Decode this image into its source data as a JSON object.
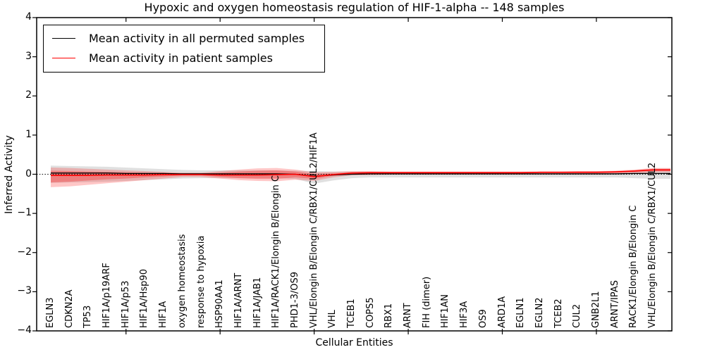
{
  "legend": {
    "items": [
      {
        "label": "Mean activity in all permuted samples",
        "color": "#000000"
      },
      {
        "label": "Mean activity in patient samples",
        "color": "#ff0000"
      }
    ]
  },
  "chart_data": {
    "type": "line",
    "title": "Hypoxic and oxygen homeostasis regulation of HIF-1-alpha -- 148 samples",
    "xlabel": "Cellular Entities",
    "ylabel": "Inferred Activity",
    "ylim": [
      -4,
      4
    ],
    "ytick_labels": [
      "4",
      "3",
      "2",
      "1",
      "0",
      "−1",
      "−2",
      "−3",
      "−4"
    ],
    "grid": false,
    "legend_position": "upper left",
    "zero_line": true,
    "categories": [
      "EGLN3",
      "CDKN2A",
      "TP53",
      "HIF1A/p19ARF",
      "HIF1A/p53",
      "HIF1A/Hsp90",
      "HIF1A",
      "oxygen homeostasis",
      "response to hypoxia",
      "HSP90AA1",
      "HIF1A/ARNT",
      "HIF1A/JAB1",
      "HIF1A/RACK1/Elongin B/Elongin C",
      "PHD1-3/OS9",
      "VHL/Elongin B/Elongin C/RBX1/CUL2/HIF1A",
      "VHL",
      "TCEB1",
      "COPS5",
      "RBX1",
      "ARNT",
      "FIH (dimer)",
      "HIF1AN",
      "HIF3A",
      "OS9",
      "ARD1A",
      "EGLN1",
      "EGLN2",
      "TCEB2",
      "CUL2",
      "GNB2L1",
      "ARNT/IPAS",
      "RACK1/Elongin B/Elongin C",
      "VHL/Elongin B/Elongin C/RBX1/CUL2"
    ],
    "series": [
      {
        "name": "Mean activity in all permuted samples",
        "color": "#000000",
        "values": [
          0.03,
          0.03,
          0.03,
          0.03,
          0.02,
          0.02,
          0.02,
          0.01,
          0.01,
          0.01,
          0.01,
          0.01,
          0.01,
          0.0,
          -0.05,
          -0.02,
          0.0,
          0.01,
          0.01,
          0.01,
          0.01,
          0.01,
          0.01,
          0.01,
          0.01,
          0.01,
          0.01,
          0.01,
          0.01,
          0.01,
          0.01,
          0.02,
          0.02
        ]
      },
      {
        "name": "Mean activity in patient samples",
        "color": "#ff0000",
        "values": [
          -0.03,
          -0.03,
          -0.03,
          -0.02,
          -0.02,
          -0.02,
          -0.01,
          -0.01,
          -0.01,
          -0.02,
          -0.02,
          -0.02,
          -0.01,
          0.0,
          -0.06,
          -0.01,
          0.03,
          0.04,
          0.04,
          0.04,
          0.04,
          0.04,
          0.04,
          0.04,
          0.04,
          0.04,
          0.05,
          0.05,
          0.05,
          0.05,
          0.06,
          0.08,
          0.11
        ]
      }
    ],
    "bands": [
      {
        "name": "permuted-std",
        "color": "#000000",
        "opacity": 0.12,
        "upper": [
          0.22,
          0.21,
          0.2,
          0.19,
          0.17,
          0.15,
          0.13,
          0.11,
          0.1,
          0.1,
          0.1,
          0.1,
          0.1,
          0.09,
          0.08,
          0.07,
          0.07,
          0.06,
          0.06,
          0.06,
          0.06,
          0.06,
          0.06,
          0.06,
          0.06,
          0.06,
          0.06,
          0.06,
          0.06,
          0.07,
          0.07,
          0.1,
          0.14
        ],
        "lower": [
          -0.22,
          -0.21,
          -0.2,
          -0.19,
          -0.17,
          -0.15,
          -0.13,
          -0.11,
          -0.1,
          -0.1,
          -0.1,
          -0.1,
          -0.1,
          -0.12,
          -0.24,
          -0.16,
          -0.1,
          -0.08,
          -0.08,
          -0.08,
          -0.08,
          -0.08,
          -0.08,
          -0.08,
          -0.08,
          -0.08,
          -0.08,
          -0.08,
          -0.08,
          -0.08,
          -0.08,
          -0.1,
          -0.12
        ]
      },
      {
        "name": "patient-std-outer",
        "color": "#ff0000",
        "opacity": 0.22,
        "upper": [
          0.17,
          0.16,
          0.14,
          0.12,
          0.1,
          0.08,
          0.06,
          0.04,
          0.04,
          0.08,
          0.12,
          0.15,
          0.16,
          0.12,
          0.05,
          0.06,
          0.08,
          0.08,
          0.07,
          0.07,
          0.07,
          0.07,
          0.07,
          0.07,
          0.07,
          0.07,
          0.07,
          0.07,
          0.08,
          0.08,
          0.09,
          0.12,
          0.16
        ],
        "lower": [
          -0.33,
          -0.31,
          -0.27,
          -0.23,
          -0.19,
          -0.15,
          -0.11,
          -0.07,
          -0.07,
          -0.11,
          -0.15,
          -0.17,
          -0.18,
          -0.14,
          -0.17,
          -0.08,
          -0.03,
          -0.02,
          -0.01,
          -0.01,
          -0.01,
          -0.01,
          -0.01,
          -0.01,
          -0.01,
          -0.01,
          -0.01,
          -0.01,
          -0.01,
          -0.01,
          0.0,
          0.02,
          0.05
        ]
      },
      {
        "name": "patient-std-inner",
        "color": "#ff0000",
        "opacity": 0.27,
        "upper": [
          0.09,
          0.08,
          0.07,
          0.06,
          0.05,
          0.04,
          0.03,
          0.02,
          0.02,
          0.04,
          0.07,
          0.09,
          0.1,
          0.07,
          0.01,
          0.02,
          0.05,
          0.06,
          0.06,
          0.06,
          0.06,
          0.06,
          0.06,
          0.06,
          0.06,
          0.06,
          0.06,
          0.06,
          0.07,
          0.07,
          0.08,
          0.1,
          0.14
        ],
        "lower": [
          -0.21,
          -0.19,
          -0.16,
          -0.13,
          -0.11,
          -0.08,
          -0.06,
          -0.03,
          -0.03,
          -0.07,
          -0.1,
          -0.12,
          -0.12,
          -0.08,
          -0.12,
          -0.04,
          0.0,
          0.01,
          0.02,
          0.02,
          0.02,
          0.02,
          0.02,
          0.02,
          0.02,
          0.02,
          0.03,
          0.03,
          0.03,
          0.03,
          0.04,
          0.06,
          0.08
        ]
      }
    ]
  }
}
